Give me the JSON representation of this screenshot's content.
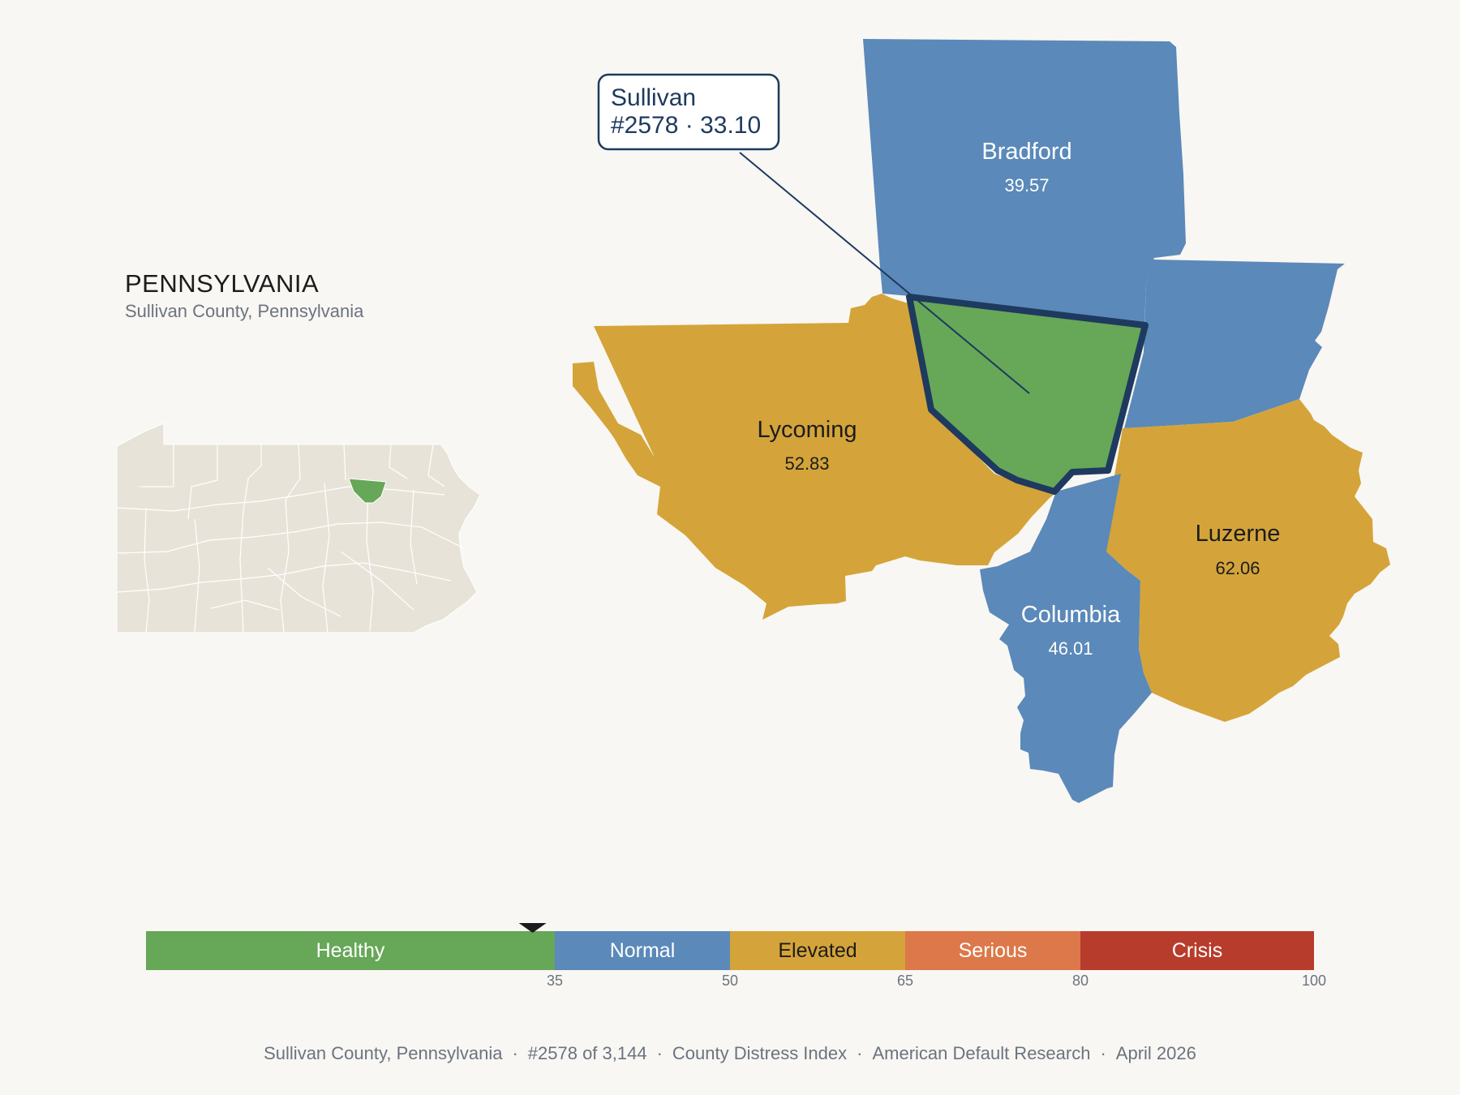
{
  "header": {
    "state": "PENNSYLVANIA",
    "subtitle": "Sullivan County, Pennsylvania"
  },
  "callout": {
    "name": "Sullivan",
    "detail": "#2578 · 33.10"
  },
  "counties": [
    {
      "id": "bradford",
      "name": "Bradford",
      "value": "39.57",
      "band": "Normal",
      "labeled": true
    },
    {
      "id": "wyoming",
      "name": "",
      "value": "",
      "band": "Normal",
      "labeled": false
    },
    {
      "id": "lycoming",
      "name": "Lycoming",
      "value": "52.83",
      "band": "Elevated",
      "labeled": true
    },
    {
      "id": "luzerne",
      "name": "Luzerne",
      "value": "62.06",
      "band": "Elevated",
      "labeled": true
    },
    {
      "id": "columbia",
      "name": "Columbia",
      "value": "46.01",
      "band": "Normal",
      "labeled": true
    },
    {
      "id": "sullivan",
      "name": "Sullivan",
      "value": "33.10",
      "band": "Healthy",
      "labeled": false,
      "highlighted": true
    }
  ],
  "scale": {
    "min": 0,
    "max": 100,
    "marker_value": 33.1,
    "bands": [
      {
        "label": "Healthy",
        "from": 0,
        "to": 35,
        "color": "#67a758",
        "text_color": "#ffffff"
      },
      {
        "label": "Normal",
        "from": 35,
        "to": 50,
        "color": "#5b89b9",
        "text_color": "#ffffff"
      },
      {
        "label": "Elevated",
        "from": 50,
        "to": 65,
        "color": "#d4a43a",
        "text_color": "#1c1c1c"
      },
      {
        "label": "Serious",
        "from": 65,
        "to": 80,
        "color": "#dc7849",
        "text_color": "#ffffff"
      },
      {
        "label": "Crisis",
        "from": 80,
        "to": 100,
        "color": "#b83c2c",
        "text_color": "#ffffff"
      }
    ],
    "ticks": [
      "35",
      "50",
      "65",
      "80",
      "100"
    ]
  },
  "colors": {
    "background": "#f9f7f3",
    "inset_fill": "#e8e3d8",
    "highlight_fill": "#67a758",
    "outline": "#1e3a5f",
    "normal": "#5b89b9",
    "elevated": "#d4a43a"
  },
  "footer": {
    "location": "Sullivan County, Pennsylvania",
    "rank": "#2578 of 3,144",
    "index": "County Distress Index",
    "source": "American Default Research",
    "date": "April 2026",
    "separator": "·"
  }
}
